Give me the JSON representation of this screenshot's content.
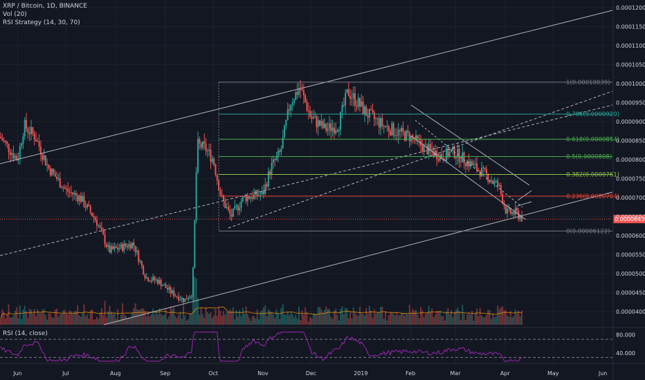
{
  "header": {
    "title": "XRP / Bitcoin, 1D, BINANCE",
    "volume_indicator": "Vol (20)",
    "strategy": "RSI Strategy (14, 30, 70)",
    "rsi_label": "RSI (14, close)"
  },
  "price_tag": "0.00006436",
  "colors": {
    "background": "#131722",
    "up": "#26a69a",
    "down": "#ef5350",
    "rsi_line": "#9c27b0",
    "grid": "#1e222d"
  },
  "chart_data": {
    "type": "candlestick",
    "symbol": "XRP / Bitcoin",
    "interval": "1D",
    "exchange": "BINANCE",
    "ylim": [
      3.62e-05,
      0.0001211
    ],
    "y_ticks": [
      "0.00004000",
      "0.00004500",
      "0.00005000",
      "0.00005500",
      "0.00006000",
      "0.00006500",
      "0.00007000",
      "0.00007500",
      "0.00008000",
      "0.00008500",
      "0.00009000",
      "0.00009500",
      "0.00010000",
      "0.00010500",
      "0.00011000",
      "0.00011500",
      "0.00012000"
    ],
    "x_ticks": [
      "Jun",
      "Jul",
      "Aug",
      "Sep",
      "Oct",
      "Nov",
      "Dec",
      "2019",
      "Feb",
      "Mar",
      "Apr",
      "May",
      "Jun"
    ],
    "x_range": [
      "2018-05-21",
      "2019-06-07"
    ],
    "series_close": [
      [
        "2018-05-21",
        8.6e-05
      ],
      [
        "2018-06-01",
        8e-05
      ],
      [
        "2018-06-05",
        8.9e-05
      ],
      [
        "2018-06-12",
        8.6e-05
      ],
      [
        "2018-06-20",
        7.8e-05
      ],
      [
        "2018-07-01",
        7.2e-05
      ],
      [
        "2018-07-10",
        7e-05
      ],
      [
        "2018-07-20",
        6.4e-05
      ],
      [
        "2018-07-28",
        5.6e-05
      ],
      [
        "2018-08-05",
        5.7e-05
      ],
      [
        "2018-08-12",
        5.8e-05
      ],
      [
        "2018-08-20",
        4.9e-05
      ],
      [
        "2018-08-28",
        4.8e-05
      ],
      [
        "2018-09-05",
        4.5e-05
      ],
      [
        "2018-09-13",
        4.3e-05
      ],
      [
        "2018-09-18",
        4.5e-05
      ],
      [
        "2018-09-21",
        8.4e-05
      ],
      [
        "2018-09-26",
        8.3e-05
      ],
      [
        "2018-10-01",
        8e-05
      ],
      [
        "2018-10-06",
        7e-05
      ],
      [
        "2018-10-12",
        6.5e-05
      ],
      [
        "2018-10-20",
        7e-05
      ],
      [
        "2018-11-01",
        7.1e-05
      ],
      [
        "2018-11-06",
        7.8e-05
      ],
      [
        "2018-11-12",
        8.2e-05
      ],
      [
        "2018-11-18",
        9.5e-05
      ],
      [
        "2018-11-24",
        9.9e-05
      ],
      [
        "2018-12-01",
        9.1e-05
      ],
      [
        "2018-12-10",
        8.8e-05
      ],
      [
        "2018-12-18",
        8.9e-05
      ],
      [
        "2018-12-24",
        9.8e-05
      ],
      [
        "2018-12-28",
        9.6e-05
      ],
      [
        "2019-01-05",
        9.2e-05
      ],
      [
        "2019-01-15",
        8.9e-05
      ],
      [
        "2019-01-25",
        8.7e-05
      ],
      [
        "2019-02-01",
        8.6e-05
      ],
      [
        "2019-02-10",
        8.3e-05
      ],
      [
        "2019-02-20",
        8.1e-05
      ],
      [
        "2019-02-28",
        8.2e-05
      ],
      [
        "2019-03-10",
        7.9e-05
      ],
      [
        "2019-03-20",
        7.6e-05
      ],
      [
        "2019-03-28",
        7.3e-05
      ],
      [
        "2019-04-02",
        6.6e-05
      ],
      [
        "2019-04-08",
        6.6e-05
      ],
      [
        "2019-04-12",
        6.45e-05
      ]
    ],
    "fibonacci": [
      {
        "label": "1(0.00010039)",
        "level": 1,
        "price": 0.00010039,
        "color": "#787b86"
      },
      {
        "label": "0.786(0.0000920)",
        "level": 0.786,
        "price": 9.2e-05,
        "color": "#26a69a"
      },
      {
        "label": "0.618(0.0000854)",
        "level": 0.618,
        "price": 8.54e-05,
        "color": "#4caf50"
      },
      {
        "label": "0.5(0.0000808)",
        "level": 0.5,
        "price": 8.08e-05,
        "color": "#4caf50"
      },
      {
        "label": "0.382(0.0000761)",
        "level": 0.382,
        "price": 7.61e-05,
        "color": "#8bc34a"
      },
      {
        "label": "0.236(0.0000704)",
        "level": 0.236,
        "price": 7.04e-05,
        "color": "#f44336"
      },
      {
        "label": "0(0.00006122)",
        "level": 0,
        "price": 6.122e-05,
        "color": "#787b86"
      }
    ],
    "rsi": {
      "ylim": [
        20,
        90
      ],
      "y_ticks": [
        "80.000",
        "40.000"
      ],
      "bands": [
        70,
        30
      ]
    }
  }
}
